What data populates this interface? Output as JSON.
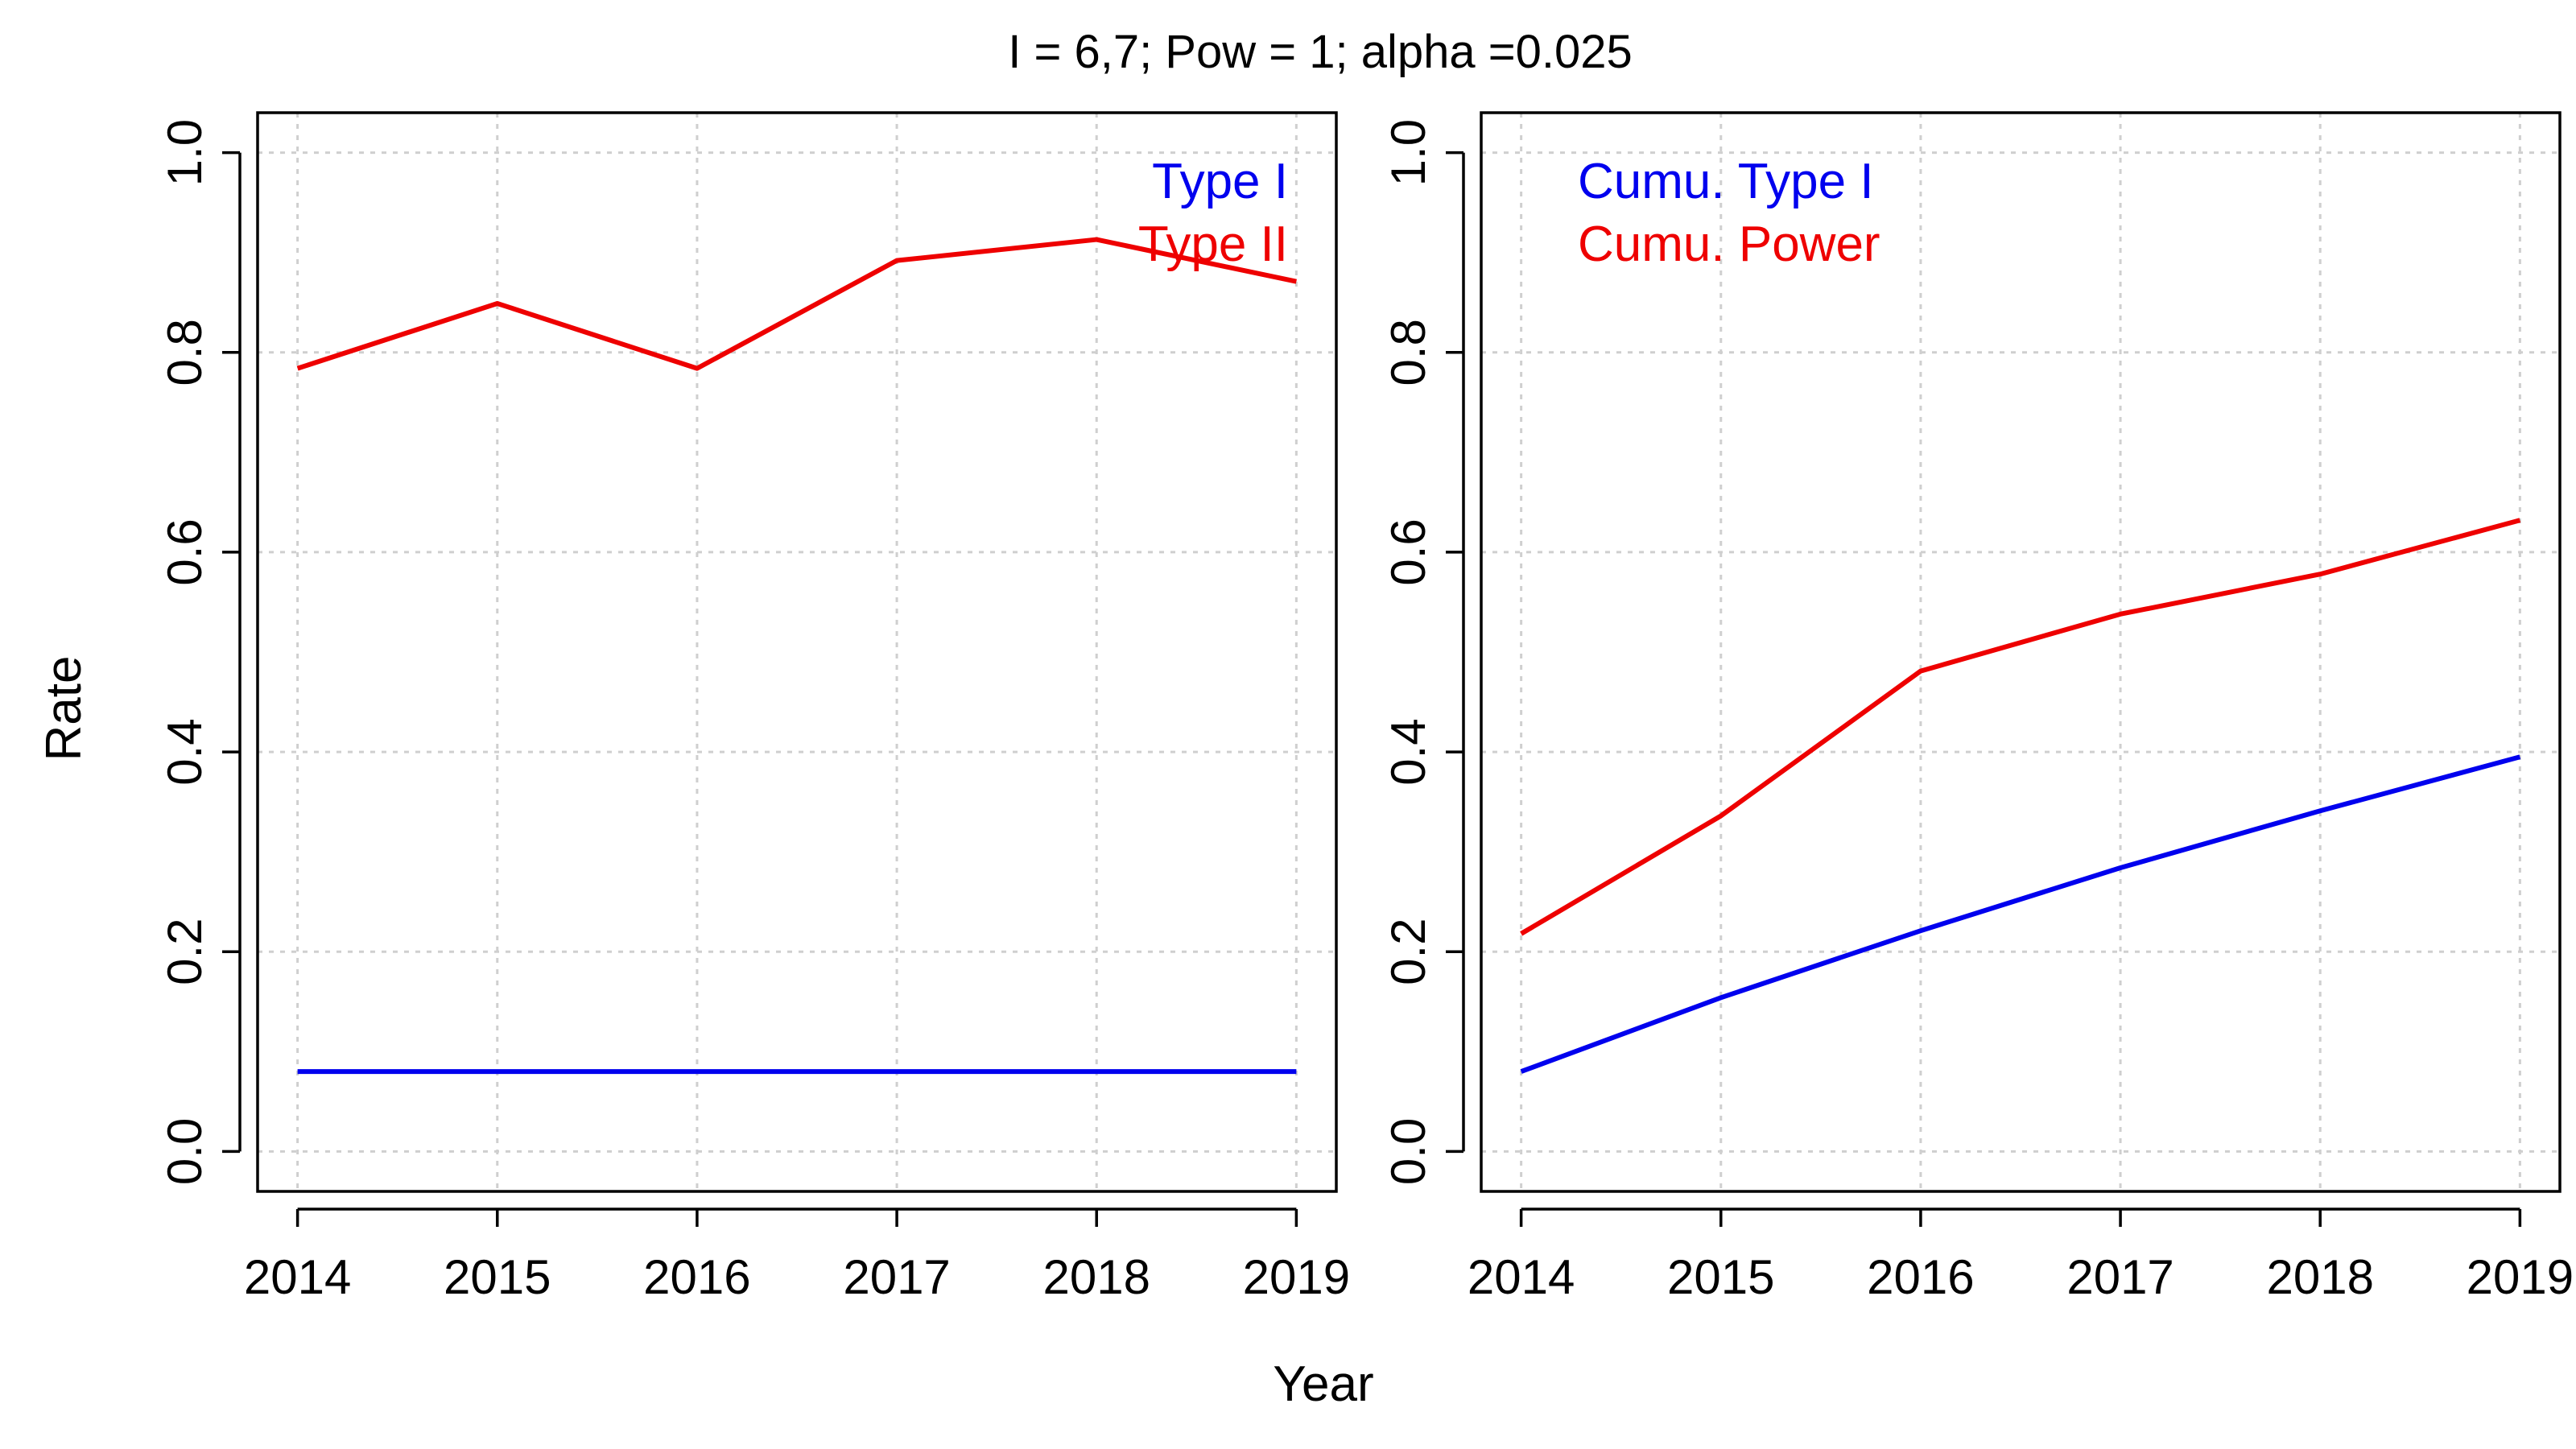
{
  "figure": {
    "title": "I = 6,7; Pow = 1; alpha =0.025",
    "ylabel": "Rate",
    "xlabel": "Year"
  },
  "chart_data": [
    {
      "type": "line",
      "x": [
        2014,
        2015,
        2016,
        2017,
        2018,
        2019
      ],
      "xticks": [
        "2014",
        "2015",
        "2016",
        "2017",
        "2018",
        "2019"
      ],
      "yticks": [
        "0.0",
        "0.2",
        "0.4",
        "0.6",
        "0.8",
        "1.0"
      ],
      "ylim": [
        0,
        1
      ],
      "grid": true,
      "legend_position": "top-right",
      "series": [
        {
          "name": "Type I",
          "color": "#0000EE",
          "values": [
            0.08,
            0.08,
            0.08,
            0.08,
            0.08,
            0.08
          ]
        },
        {
          "name": "Type II",
          "color": "#EE0000",
          "values": [
            0.784,
            0.849,
            0.784,
            0.892,
            0.913,
            0.871
          ]
        }
      ]
    },
    {
      "type": "line",
      "x": [
        2014,
        2015,
        2016,
        2017,
        2018,
        2019
      ],
      "xticks": [
        "2014",
        "2015",
        "2016",
        "2017",
        "2018",
        "2019"
      ],
      "yticks": [
        "0.0",
        "0.2",
        "0.4",
        "0.6",
        "0.8",
        "1.0"
      ],
      "ylim": [
        0,
        1
      ],
      "grid": true,
      "legend_position": "top-left",
      "series": [
        {
          "name": "Cumu. Type I",
          "color": "#0000EE",
          "values": [
            0.08,
            0.154,
            0.221,
            0.284,
            0.341,
            0.395
          ]
        },
        {
          "name": "Cumu. Power",
          "color": "#EE0000",
          "values": [
            0.218,
            0.336,
            0.481,
            0.538,
            0.578,
            0.632
          ]
        }
      ]
    }
  ]
}
